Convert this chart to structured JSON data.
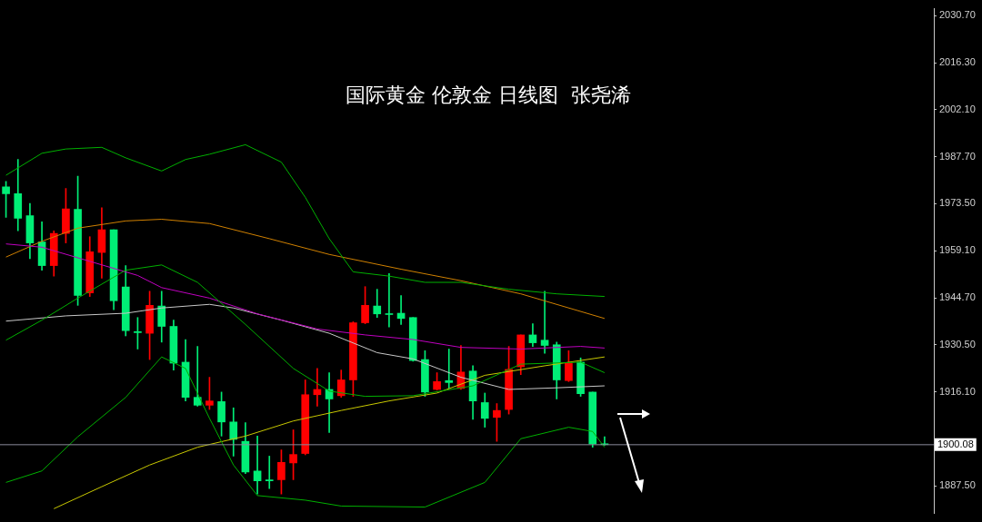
{
  "chart_data": {
    "type": "candlestick",
    "title": "国际黄金 伦敦金 日线图  张尧浠",
    "categories": [
      null,
      null,
      null,
      null,
      null,
      null,
      null,
      null,
      null,
      null,
      null,
      null,
      null,
      null,
      null,
      null,
      null,
      null,
      null,
      null,
      null,
      null,
      null,
      null,
      null,
      null,
      null,
      null,
      null,
      null,
      null,
      null,
      null,
      null,
      null,
      null,
      null,
      null,
      null,
      null,
      null,
      null,
      null,
      null,
      null,
      null,
      null,
      null,
      null,
      null,
      null,
      null,
      null,
      null,
      null,
      null,
      null,
      null,
      null,
      null,
      null,
      null,
      null,
      null,
      null,
      null,
      null,
      null,
      null,
      null,
      null,
      null,
      null,
      null,
      null,
      null,
      null,
      null
    ],
    "ohlc": [
      [
        1978.6,
        1980.2,
        1969.3,
        1976.5
      ],
      [
        1976.5,
        1986.9,
        1965.2,
        1969.0
      ],
      [
        1969.8,
        1973.5,
        1956.7,
        1961.5
      ],
      [
        1961.8,
        1967.9,
        1953.2,
        1954.6
      ],
      [
        1954.6,
        1965.2,
        1951.4,
        1964.4
      ],
      [
        1964.4,
        1978.1,
        1961.5,
        1971.9
      ],
      [
        1971.7,
        1981.8,
        1942.5,
        1945.5
      ],
      [
        1946.3,
        1963.4,
        1945.2,
        1958.8
      ],
      [
        1958.6,
        1972.2,
        1950.8,
        1965.5
      ],
      [
        1965.5,
        1965.5,
        1941.2,
        1943.9
      ],
      [
        1948.1,
        1954.6,
        1933.2,
        1934.8
      ],
      [
        1934.5,
        1938.8,
        1929.2,
        1934.2
      ],
      [
        1934.0,
        1946.8,
        1926.0,
        1942.5
      ],
      [
        1942.3,
        1946.8,
        1931.3,
        1936.1
      ],
      [
        1936.1,
        1938.0,
        1922.8,
        1924.9
      ],
      [
        1925.2,
        1932.1,
        1913.4,
        1914.5
      ],
      [
        1914.5,
        1930.0,
        1911.8,
        1912.1
      ],
      [
        1912.1,
        1920.6,
        1910.8,
        1913.4
      ],
      [
        1913.2,
        1916.1,
        1902.7,
        1907.0
      ],
      [
        1907.0,
        1911.3,
        1896.6,
        1901.7
      ],
      [
        1901.1,
        1906.8,
        1891.3,
        1891.8
      ],
      [
        1892.1,
        1902.7,
        1885.1,
        1889.1
      ],
      [
        1889.4,
        1896.6,
        1886.7,
        1889.1
      ],
      [
        1889.4,
        1898.5,
        1885.1,
        1894.7
      ],
      [
        1894.5,
        1904.6,
        1889.4,
        1897.1
      ],
      [
        1897.4,
        1919.8,
        1897.0,
        1915.3
      ],
      [
        1915.3,
        1923.3,
        1911.8,
        1916.9
      ],
      [
        1916.9,
        1922.0,
        1903.8,
        1914.0
      ],
      [
        1915.0,
        1922.8,
        1914.5,
        1919.8
      ],
      [
        1919.8,
        1937.5,
        1914.8,
        1937.2
      ],
      [
        1937.2,
        1948.2,
        1936.9,
        1942.5
      ],
      [
        1942.3,
        1947.4,
        1938.8,
        1939.9
      ],
      [
        1939.9,
        1952.2,
        1935.9,
        1939.7
      ],
      [
        1940.1,
        1945.5,
        1936.7,
        1938.5
      ],
      [
        1938.8,
        1938.8,
        1925.5,
        1925.7
      ],
      [
        1926.0,
        1928.7,
        1914.8,
        1916.1
      ],
      [
        1916.9,
        1922.0,
        1916.7,
        1919.3
      ],
      [
        1919.6,
        1929.2,
        1917.2,
        1919.0
      ],
      [
        1917.2,
        1930.3,
        1916.9,
        1922.2
      ],
      [
        1922.5,
        1924.1,
        1907.8,
        1913.4
      ],
      [
        1912.9,
        1915.8,
        1905.4,
        1908.1
      ],
      [
        1908.4,
        1912.6,
        1901.1,
        1910.5
      ],
      [
        1910.8,
        1930.0,
        1909.4,
        1923.0
      ],
      [
        1923.8,
        1933.5,
        1921.4,
        1933.5
      ],
      [
        1933.5,
        1936.9,
        1930.0,
        1931.1
      ],
      [
        1931.9,
        1946.8,
        1927.9,
        1930.3
      ],
      [
        1930.5,
        1931.3,
        1914.0,
        1919.8
      ],
      [
        1919.6,
        1928.7,
        1919.3,
        1924.9
      ],
      [
        1925.2,
        1926.5,
        1914.8,
        1915.6
      ],
      [
        1916.1,
        1916.1,
        1899.3,
        1900.3
      ],
      [
        1900.3,
        1902.5,
        1899.9,
        1900.1
      ],
      null,
      null,
      null,
      null,
      null,
      null,
      null,
      null,
      null,
      null,
      null,
      null,
      null,
      null,
      null,
      null,
      null,
      null,
      null,
      null,
      null,
      null,
      null,
      null,
      null,
      null,
      null
    ],
    "colors": [
      "#00ee76",
      "#00ee76",
      "#00ee76",
      "#00ee76",
      "#ff0000",
      "#ff0000",
      "#00ee76",
      "#ff0000",
      "#ff0000",
      "#00ee76",
      "#00ee76",
      "#00ee76",
      "#ff0000",
      "#00ee76",
      "#00ee76",
      "#00ee76",
      "#00ee76",
      "#ff0000",
      "#00ee76",
      "#00ee76",
      "#00ee76",
      "#00ee76",
      "#00ee76",
      "#ff0000",
      "#ff0000",
      "#ff0000",
      "#ff0000",
      "#00ee76",
      "#ff0000",
      "#ff0000",
      "#ff0000",
      "#00ee76",
      "#00ee76",
      "#00ee76",
      "#00ee76",
      "#00ee76",
      "#ff0000",
      "#00ee76",
      "#ff0000",
      "#00ee76",
      "#00ee76",
      "#ff0000",
      "#ff0000",
      "#ff0000",
      "#00ee76",
      "#00ee76",
      "#00ee76",
      "#ff0000",
      "#00ee76",
      "#00ee76",
      "#00ee76",
      null,
      null,
      null,
      null,
      null,
      null,
      null,
      null,
      null,
      null,
      null,
      null,
      null,
      null,
      null,
      null,
      null,
      null,
      null,
      null,
      null,
      null,
      null,
      null,
      null,
      null,
      null
    ],
    "series": [
      {
        "type": "line",
        "color": "#00b000",
        "values": [
          1982.1,
          null,
          null,
          1988.8,
          null,
          1990.1,
          null,
          null,
          1990.6,
          null,
          1987.4,
          null,
          null,
          1983.4,
          null,
          1986.9,
          null,
          1988.5,
          null,
          null,
          1991.4,
          null,
          null,
          1986.1,
          null,
          1975.4,
          null,
          1962.8,
          null,
          1952.7,
          null,
          null,
          1951.4,
          null,
          null,
          1949.5,
          null,
          null,
          1949.5,
          null,
          null,
          null,
          1947.4,
          null,
          null,
          null,
          1946.0,
          null,
          null,
          null,
          1945.2,
          null,
          null,
          null,
          null,
          null,
          null,
          null,
          null,
          null,
          null,
          null,
          null,
          null,
          null,
          null,
          null,
          null,
          null,
          null,
          null,
          null,
          null,
          null,
          null,
          null,
          null,
          null
        ]
      },
      {
        "type": "line",
        "color": "#00b000",
        "values": [
          1931.9,
          null,
          null,
          1938.0,
          null,
          null,
          1944.7,
          null,
          null,
          null,
          1953.2,
          null,
          null,
          1954.8,
          null,
          null,
          1949.5,
          null,
          null,
          null,
          1936.7,
          null,
          null,
          null,
          1923.3,
          null,
          null,
          1916.4,
          null,
          null,
          1914.8,
          null,
          null,
          null,
          1915.0,
          null,
          null,
          null,
          null,
          1918.0,
          null,
          null,
          null,
          1924.6,
          null,
          null,
          null,
          null,
          1925.2,
          null,
          1922.0,
          null,
          null,
          null,
          null,
          null,
          null,
          null,
          null,
          null,
          null,
          null,
          null,
          null,
          null,
          null,
          null,
          null,
          null,
          null,
          null,
          null,
          null,
          null,
          null,
          null,
          null,
          null
        ]
      },
      {
        "type": "line",
        "color": "#00b000",
        "values": [
          1888.6,
          null,
          null,
          1892.1,
          null,
          null,
          1902.5,
          null,
          null,
          null,
          1914.5,
          null,
          null,
          1926.8,
          null,
          1923.3,
          null,
          1908.1,
          null,
          1893.9,
          null,
          1884.6,
          null,
          null,
          null,
          1883.2,
          null,
          null,
          1881.4,
          null,
          null,
          null,
          null,
          null,
          null,
          1881.1,
          null,
          null,
          null,
          null,
          1888.6,
          null,
          null,
          1901.9,
          null,
          null,
          null,
          1905.4,
          null,
          1904.1,
          1899.3,
          null,
          null,
          null,
          null,
          null,
          null,
          null,
          null,
          null,
          null,
          null,
          null,
          null,
          null,
          null,
          null,
          null,
          null,
          null,
          null,
          null,
          null,
          null,
          null,
          null,
          null,
          null
        ]
      },
      {
        "type": "line",
        "color": "#c000c0",
        "values": [
          1961.2,
          null,
          null,
          1960.2,
          null,
          null,
          null,
          1955.9,
          null,
          null,
          null,
          1951.6,
          null,
          1947.9,
          null,
          null,
          null,
          1944.7,
          null,
          null,
          null,
          1939.9,
          null,
          null,
          null,
          null,
          1935.3,
          null,
          null,
          null,
          1933.5,
          null,
          null,
          null,
          1932.1,
          null,
          null,
          null,
          1929.7,
          null,
          null,
          null,
          null,
          1929.2,
          null,
          null,
          null,
          null,
          1930.0,
          null,
          1929.5,
          null,
          null,
          null,
          null,
          null,
          null,
          null,
          null,
          null,
          null,
          null,
          null,
          null,
          null,
          null,
          null,
          null,
          null,
          null,
          null,
          null,
          null,
          null,
          null,
          null,
          null,
          null
        ]
      },
      {
        "type": "line",
        "color": "#c8c8c8",
        "values": [
          1937.7,
          null,
          null,
          null,
          null,
          1939.3,
          null,
          null,
          null,
          null,
          1940.1,
          null,
          null,
          1941.7,
          null,
          null,
          null,
          1942.8,
          null,
          1941.7,
          null,
          null,
          null,
          1938.0,
          null,
          null,
          null,
          1934.0,
          null,
          null,
          null,
          1928.1,
          null,
          null,
          1926.2,
          null,
          null,
          null,
          1920.6,
          null,
          null,
          null,
          1916.9,
          null,
          null,
          null,
          1917.4,
          null,
          null,
          null,
          1918.0,
          null,
          null,
          null,
          null,
          null,
          null,
          null,
          null,
          null,
          null,
          null,
          null,
          null,
          null,
          null,
          null,
          null,
          null,
          null,
          null,
          null,
          null,
          null,
          null,
          null,
          null,
          null
        ]
      },
      {
        "type": "line",
        "color": "#d08000",
        "values": [
          1957.2,
          null,
          null,
          1962.0,
          null,
          null,
          1966.0,
          null,
          null,
          null,
          1968.2,
          null,
          null,
          1968.7,
          null,
          null,
          null,
          1967.4,
          null,
          null,
          null,
          null,
          1962.8,
          null,
          null,
          null,
          null,
          1958.0,
          null,
          null,
          null,
          null,
          null,
          1953.5,
          null,
          null,
          null,
          null,
          1950.0,
          null,
          null,
          null,
          null,
          1946.0,
          null,
          null,
          null,
          null,
          null,
          null,
          1938.5,
          null,
          null,
          null,
          null,
          null,
          null,
          null,
          null,
          null,
          null,
          null,
          null,
          null,
          null,
          null,
          null,
          null,
          null,
          null,
          null,
          null,
          null,
          null,
          null,
          null,
          null,
          null
        ]
      },
      {
        "type": "line",
        "color": "#c8c800",
        "values": [
          null,
          null,
          null,
          null,
          1880.6,
          null,
          null,
          null,
          1887.3,
          null,
          null,
          null,
          1893.9,
          null,
          null,
          null,
          1899.3,
          null,
          null,
          null,
          1902.7,
          null,
          null,
          null,
          1907.3,
          null,
          null,
          null,
          1910.5,
          null,
          null,
          null,
          1913.4,
          null,
          null,
          null,
          1915.8,
          null,
          null,
          null,
          1921.2,
          null,
          null,
          null,
          null,
          1924.1,
          null,
          null,
          null,
          null,
          1926.8,
          null,
          null,
          null,
          null,
          null,
          null,
          null,
          null,
          null,
          null,
          null,
          null,
          null,
          null,
          null,
          null,
          null,
          null,
          null,
          null,
          null,
          null,
          null,
          null,
          null,
          null,
          null
        ]
      }
    ],
    "ylim": [
      1879.2,
      2032.8
    ],
    "yticks": [
      {
        "value": 1887.5,
        "label": "1887.50"
      },
      {
        "value": 1916.1,
        "label": "1916.10"
      },
      {
        "value": 1930.5,
        "label": "1930.50"
      },
      {
        "value": 1944.7,
        "label": "1944.70"
      },
      {
        "value": 1959.1,
        "label": "1959.10"
      },
      {
        "value": 1973.5,
        "label": "1973.50"
      },
      {
        "value": 1987.7,
        "label": "1987.70"
      },
      {
        "value": 2002.1,
        "label": "2002.10"
      },
      {
        "value": 2016.3,
        "label": "2016.30"
      },
      {
        "value": 2030.7,
        "label": "2030.70"
      }
    ],
    "ref_lines": [
      {
        "axis": "y",
        "value": 1900.08,
        "label": "1900.08",
        "color": "#8c8c9c"
      }
    ],
    "tick_labels": "y"
  }
}
